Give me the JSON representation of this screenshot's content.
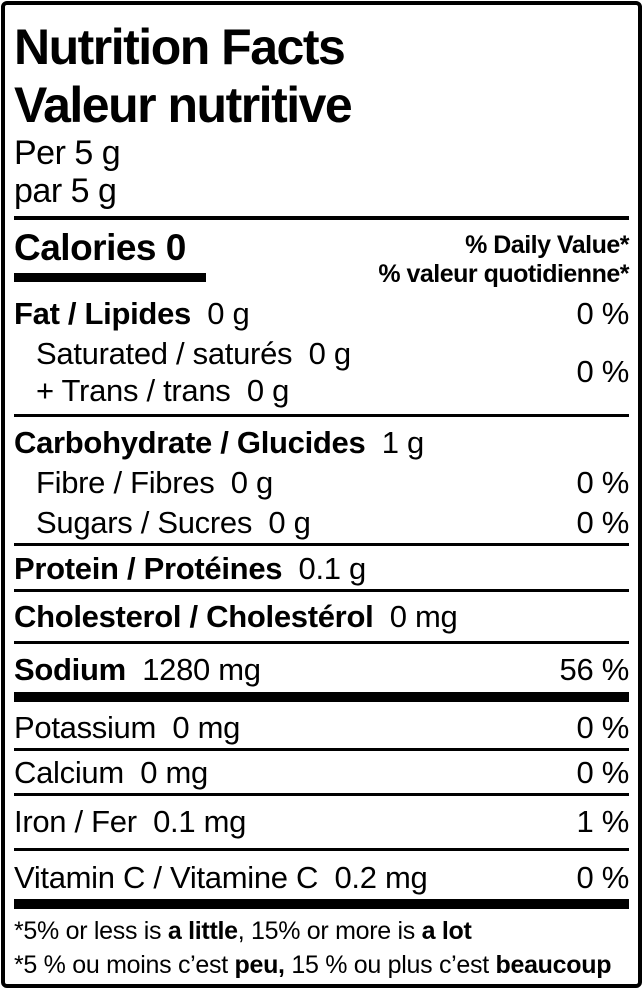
{
  "header": {
    "title_en": "Nutrition Facts",
    "title_fr": "Valeur nutritive",
    "serving_en": "Per 5 g",
    "serving_fr": "par 5 g"
  },
  "calories": {
    "label": "Calories",
    "value": "0"
  },
  "daily_value_header": {
    "en": "% Daily Value*",
    "fr": "% valeur quotidienne*"
  },
  "nutrients": {
    "fat": {
      "name": "Fat / Lipides",
      "amount": "0 g",
      "dv": "0 %"
    },
    "saturated": {
      "name": "Saturated / saturés",
      "amount": "0 g"
    },
    "trans": {
      "name": "+ Trans / trans",
      "amount": "0 g"
    },
    "saturated_trans_dv": "0 %",
    "carbohydrate": {
      "name": "Carbohydrate / Glucides",
      "amount": "1 g"
    },
    "fibre": {
      "name": "Fibre / Fibres",
      "amount": "0 g",
      "dv": "0 %"
    },
    "sugars": {
      "name": "Sugars / Sucres",
      "amount": "0 g",
      "dv": "0 %"
    },
    "protein": {
      "name": "Protein / Protéines",
      "amount": "0.1 g"
    },
    "cholesterol": {
      "name": "Cholesterol / Cholestérol",
      "amount": "0 mg"
    },
    "sodium": {
      "name": "Sodium",
      "amount": "1280 mg",
      "dv": "56 %"
    },
    "potassium": {
      "name": "Potassium",
      "amount": "0 mg",
      "dv": "0 %"
    },
    "calcium": {
      "name": "Calcium",
      "amount": "0 mg",
      "dv": "0 %"
    },
    "iron": {
      "name": "Iron / Fer",
      "amount": "0.1 mg",
      "dv": "1 %"
    },
    "vitamin_c": {
      "name": "Vitamin C / Vitamine C",
      "amount": "0.2 mg",
      "dv": "0 %"
    }
  },
  "footnote": {
    "en_prefix": "*5% or less is ",
    "en_bold1": "a little",
    "en_mid": ", 15% or more is ",
    "en_bold2": "a lot",
    "fr_prefix": "*5 % ou moins c’est ",
    "fr_bold1": "peu,",
    "fr_mid": " 15 % ou plus c’est ",
    "fr_bold2": "beaucoup"
  },
  "colors": {
    "ink": "#000000",
    "background": "#ffffff"
  }
}
